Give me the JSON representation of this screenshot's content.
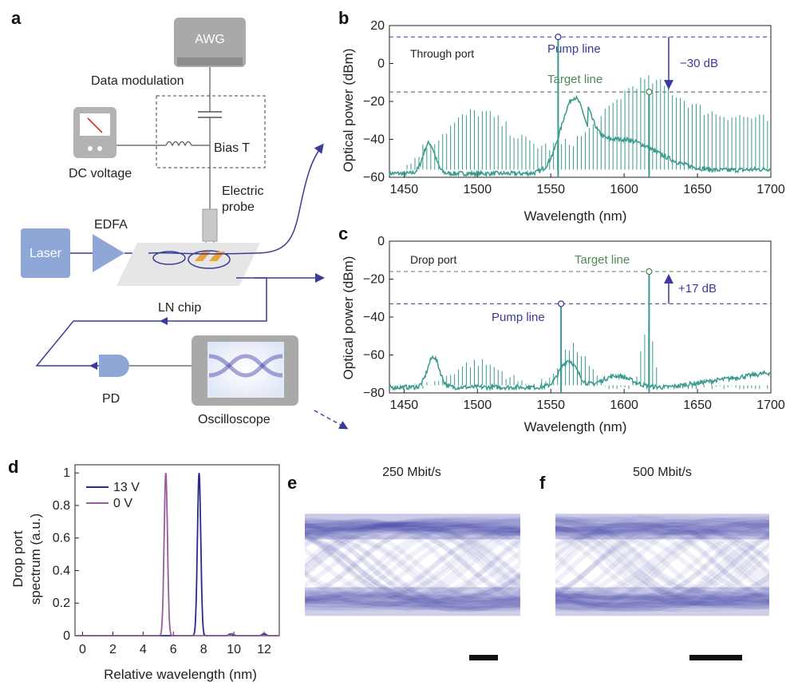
{
  "panel_labels": {
    "a": "a",
    "b": "b",
    "c": "c",
    "d": "d",
    "e": "e",
    "f": "f"
  },
  "schematic": {
    "awg": "AWG",
    "data_modulation": "Data modulation",
    "bias_t": "Bias T",
    "dc_voltage": "DC voltage",
    "electric_probe_1": "Electric",
    "electric_probe_2": "probe",
    "laser": "Laser",
    "edfa": "EDFA",
    "ln_chip": "LN chip",
    "pd": "PD",
    "oscilloscope": "Oscilloscope"
  },
  "colors": {
    "trace": "#3a9a8e",
    "blue_line": "#3b3b9a",
    "green_line": "#4d8a55",
    "laser_box": "#8fa7d6",
    "chip_plate": "#e6e6e6",
    "gold": "#e8a33a",
    "eye_blue": "#3e3fa8",
    "v13": "#2b2b8a",
    "v0": "#9a5aa0"
  },
  "chart_data": [
    {
      "id": "b",
      "type": "line",
      "xlabel": "Wavelength (nm)",
      "ylabel": "Optical power  (dBm)",
      "xlim": [
        1440,
        1700
      ],
      "ylim": [
        -60,
        20
      ],
      "xticks": [
        "1450",
        "1500",
        "1550",
        "1600",
        "1650",
        "1700"
      ],
      "yticks": [
        "20",
        "0",
        "−20",
        "−40",
        "−60"
      ],
      "port_label": "Through port",
      "pump_label": "Pump line",
      "target_label": "Target line",
      "delta_label": "−30 dB",
      "pump_level": 14,
      "target_level": -15,
      "pump_wavelength": 1555,
      "target_wavelength": 1617
    },
    {
      "id": "c",
      "type": "line",
      "xlabel": "Wavelength (nm)",
      "ylabel": "Optical power  (dBm)",
      "xlim": [
        1440,
        1700
      ],
      "ylim": [
        -80,
        0
      ],
      "xticks": [
        "1450",
        "1500",
        "1550",
        "1600",
        "1650",
        "1700"
      ],
      "yticks": [
        "0",
        "−20",
        "−40",
        "−60",
        "−80"
      ],
      "port_label": "Drop port",
      "pump_label": "Pump line",
      "target_label": "Target line",
      "delta_label": "+17 dB",
      "pump_level": -33,
      "target_level": -16,
      "pump_wavelength": 1557,
      "target_wavelength": 1617
    },
    {
      "id": "d",
      "type": "line",
      "xlabel": "Relative wavelength (nm)",
      "ylabel_1": "Drop port",
      "ylabel_2": "spectrum (a.u.)",
      "xlim": [
        -0.5,
        13
      ],
      "ylim": [
        0,
        1.05
      ],
      "xticks": [
        "0",
        "2",
        "4",
        "6",
        "8",
        "10",
        "12"
      ],
      "yticks": [
        "0",
        "0.2",
        "0.4",
        "0.6",
        "0.8",
        "1"
      ],
      "legend": "top-left",
      "series": [
        {
          "name": "13 V",
          "peak_x": 7.7,
          "small_bumps": [
            9.8,
            12.0
          ]
        },
        {
          "name": "0 V",
          "peak_x": 5.5,
          "small_bumps": [
            9.9
          ]
        }
      ]
    }
  ],
  "eye_e": {
    "title": "250 Mbit/s"
  },
  "eye_f": {
    "title": "500 Mbit/s"
  }
}
